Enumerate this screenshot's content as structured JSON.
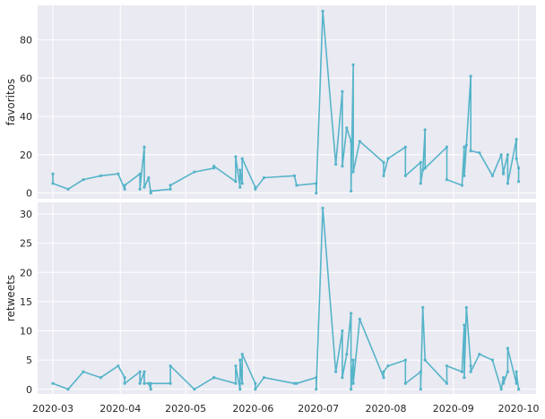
{
  "chart_data": [
    {
      "type": "line",
      "ylabel": "favoritos",
      "ylim": [
        -3,
        98
      ],
      "yticks": [
        0,
        20,
        40,
        60,
        80
      ],
      "grid": true,
      "color": "#56b4c9",
      "x": [
        "2020-03-01",
        "2020-03-01",
        "2020-03-08",
        "2020-03-15",
        "2020-03-23",
        "2020-03-31",
        "2020-04-03",
        "2020-04-03",
        "2020-04-10",
        "2020-04-10",
        "2020-04-12",
        "2020-04-12",
        "2020-04-14",
        "2020-04-15",
        "2020-04-15",
        "2020-04-24",
        "2020-04-24",
        "2020-05-05",
        "2020-05-14",
        "2020-05-14",
        "2020-05-24",
        "2020-05-24",
        "2020-05-26",
        "2020-05-26",
        "2020-05-27",
        "2020-05-27",
        "2020-06-02",
        "2020-06-02",
        "2020-06-06",
        "2020-06-20",
        "2020-06-21",
        "2020-06-30",
        "2020-06-30",
        "2020-07-03",
        "2020-07-09",
        "2020-07-12",
        "2020-07-12",
        "2020-07-14",
        "2020-07-16",
        "2020-07-16",
        "2020-07-17",
        "2020-07-17",
        "2020-07-20",
        "2020-07-31",
        "2020-07-31",
        "2020-08-02",
        "2020-08-10",
        "2020-08-10",
        "2020-08-17",
        "2020-08-17",
        "2020-08-18",
        "2020-08-19",
        "2020-08-19",
        "2020-08-29",
        "2020-08-29",
        "2020-09-05",
        "2020-09-06",
        "2020-09-06",
        "2020-09-07",
        "2020-09-09",
        "2020-09-09",
        "2020-09-13",
        "2020-09-19",
        "2020-09-23",
        "2020-09-24",
        "2020-09-24",
        "2020-09-26",
        "2020-09-26",
        "2020-09-30",
        "2020-09-30",
        "2020-10-01",
        "2020-10-01"
      ],
      "values": [
        10,
        5,
        2,
        7,
        9,
        10,
        2,
        4,
        10,
        2,
        24,
        3,
        8,
        0,
        1,
        2,
        4,
        11,
        13,
        14,
        6,
        19,
        3,
        12,
        5,
        18,
        3,
        2,
        8,
        9,
        4,
        5,
        0,
        95,
        15,
        53,
        14,
        34,
        27,
        1,
        67,
        11,
        27,
        16,
        9,
        18,
        24,
        9,
        16,
        5,
        12,
        33,
        13,
        24,
        7,
        4,
        24,
        9,
        25,
        61,
        22,
        21,
        9,
        20,
        10,
        11,
        20,
        5,
        28,
        18,
        13,
        6
      ],
      "xticks": [
        "2020-03",
        "2020-04",
        "2020-05",
        "2020-06",
        "2020-07",
        "2020-08",
        "2020-09",
        "2020-10"
      ]
    },
    {
      "type": "line",
      "ylabel": "retweets",
      "ylim": [
        -0.8,
        32
      ],
      "yticks": [
        0,
        5,
        10,
        15,
        20,
        25,
        30
      ],
      "grid": true,
      "color": "#56b4c9",
      "x": [
        "2020-03-01",
        "2020-03-08",
        "2020-03-15",
        "2020-03-23",
        "2020-03-31",
        "2020-04-03",
        "2020-04-03",
        "2020-04-10",
        "2020-04-10",
        "2020-04-12",
        "2020-04-12",
        "2020-04-14",
        "2020-04-15",
        "2020-04-15",
        "2020-04-24",
        "2020-04-24",
        "2020-05-05",
        "2020-05-14",
        "2020-05-14",
        "2020-05-24",
        "2020-05-24",
        "2020-05-26",
        "2020-05-26",
        "2020-05-27",
        "2020-05-27",
        "2020-06-02",
        "2020-06-02",
        "2020-06-06",
        "2020-06-20",
        "2020-06-21",
        "2020-06-30",
        "2020-06-30",
        "2020-07-03",
        "2020-07-09",
        "2020-07-12",
        "2020-07-12",
        "2020-07-14",
        "2020-07-16",
        "2020-07-16",
        "2020-07-17",
        "2020-07-17",
        "2020-07-20",
        "2020-07-31",
        "2020-07-31",
        "2020-08-02",
        "2020-08-10",
        "2020-08-10",
        "2020-08-17",
        "2020-08-17",
        "2020-08-18",
        "2020-08-19",
        "2020-08-19",
        "2020-08-29",
        "2020-08-29",
        "2020-09-05",
        "2020-09-06",
        "2020-09-06",
        "2020-09-07",
        "2020-09-09",
        "2020-09-09",
        "2020-09-13",
        "2020-09-19",
        "2020-09-23",
        "2020-09-24",
        "2020-09-24",
        "2020-09-26",
        "2020-09-26",
        "2020-09-30",
        "2020-09-30",
        "2020-10-01",
        "2020-10-01"
      ],
      "values": [
        1,
        0,
        3,
        2,
        4,
        2,
        1,
        3,
        1,
        3,
        1,
        1,
        0,
        1,
        1,
        4,
        0,
        2,
        2,
        1,
        4,
        0,
        5,
        1,
        6,
        1,
        0,
        2,
        1,
        1,
        2,
        0,
        31,
        3,
        10,
        2,
        6,
        13,
        0,
        5,
        1,
        12,
        2,
        3,
        4,
        5,
        1,
        3,
        0,
        14,
        5,
        5,
        1,
        4,
        3,
        11,
        2,
        14,
        4,
        3,
        6,
        5,
        0,
        2,
        1,
        3,
        7,
        1,
        3,
        0,
        0
      ],
      "xticks": [
        "2020-03",
        "2020-04",
        "2020-05",
        "2020-06",
        "2020-07",
        "2020-08",
        "2020-09",
        "2020-10"
      ]
    }
  ]
}
